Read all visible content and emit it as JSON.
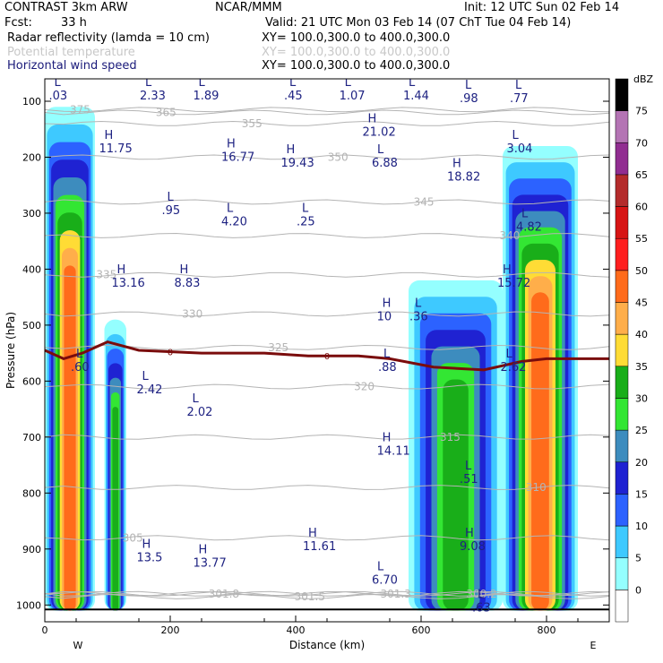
{
  "header": {
    "model": "CONTRAST   3km ARW",
    "org": "NCAR/MMM",
    "init": "Init: 12 UTC Sun 02 Feb 14",
    "fcst_label": "Fcst:",
    "fcst_value": "33 h",
    "valid": "Valid: 21 UTC Mon 03 Feb 14 (07 ChT Tue 04 Feb 14)",
    "field1": "Radar reflectivity (lamda = 10 cm)",
    "field1_xy": "XY= 100.0,300.0 to 400.0,300.0",
    "field2": "Potential temperature",
    "field2_xy": "XY= 100.0,300.0 to 400.0,300.0",
    "field3": "Horizontal wind speed",
    "field3_xy": "XY= 100.0,300.0 to 400.0,300.0"
  },
  "colors": {
    "reflectivity": [
      "#ffffff",
      "#94ffff",
      "#3ec9ff",
      "#2c62ff",
      "#1f22d2",
      "#3d8cbe",
      "#33e633",
      "#19ae19",
      "#ffdc35",
      "#ffae4a",
      "#ff6b1b",
      "#ff1f1f",
      "#d71414",
      "#b42b2b",
      "#912d91",
      "#b474b4"
    ],
    "theta_contour": "#b4b4b4",
    "wind_label": "#1e2282",
    "freezing_line": "#7a0c0c"
  },
  "chart_data": {
    "type": "heatmap",
    "title": "Radar reflectivity (lamda = 10 cm)",
    "xlabel": "Distance (km)",
    "ylabel": "Pressure (hPa)",
    "xlim": [
      0,
      900
    ],
    "ylim": [
      1030,
      60
    ],
    "x_ticks": [
      0,
      200,
      400,
      600,
      800
    ],
    "y_ticks": [
      100,
      200,
      300,
      400,
      500,
      600,
      700,
      800,
      900,
      1000
    ],
    "x_end_labels": [
      "W",
      "E"
    ],
    "colorbar": {
      "unit": "dBZ",
      "levels": [
        0,
        5,
        10,
        15,
        20,
        25,
        30,
        35,
        40,
        45,
        50,
        55,
        60,
        65,
        70,
        75
      ]
    },
    "reflectivity_columns": [
      {
        "x0": 0,
        "x1": 80,
        "top": 110,
        "bottom": 1010,
        "max_dbz": 45
      },
      {
        "x0": 95,
        "x1": 130,
        "top": 490,
        "bottom": 1010,
        "max_dbz": 30
      },
      {
        "x0": 580,
        "x1": 730,
        "top": 420,
        "bottom": 1010,
        "max_dbz": 30
      },
      {
        "x0": 730,
        "x1": 850,
        "top": 180,
        "bottom": 1010,
        "max_dbz": 45
      }
    ],
    "theta_contours": [
      {
        "label": "375",
        "p": 115
      },
      {
        "label": "365",
        "p": 120
      },
      {
        "label": "355",
        "p": 140
      },
      {
        "label": "350",
        "p": 200
      },
      {
        "label": "345",
        "p": 280
      },
      {
        "label": "340",
        "p": 340
      },
      {
        "label": "335",
        "p": 410
      },
      {
        "label": "330",
        "p": 480
      },
      {
        "label": "325",
        "p": 540
      },
      {
        "label": "320",
        "p": 610
      },
      {
        "label": "315",
        "p": 700
      },
      {
        "label": "310",
        "p": 790
      },
      {
        "label": "305",
        "p": 880
      },
      {
        "label": "301.8",
        "p": 980
      },
      {
        "label": "301.5",
        "p": 985
      },
      {
        "label": "301.3",
        "p": 980
      },
      {
        "label": "300.2",
        "p": 980
      }
    ],
    "freezing_level": {
      "label": "0",
      "x": [
        0,
        30,
        60,
        100,
        150,
        250,
        350,
        420,
        500,
        550,
        620,
        700,
        760,
        800,
        850,
        900
      ],
      "p": [
        545,
        560,
        550,
        530,
        545,
        550,
        550,
        555,
        555,
        560,
        575,
        580,
        565,
        560,
        560,
        560
      ]
    },
    "wind_annotations": [
      {
        "type": "L",
        "value": "2.33",
        "x": 160,
        "p": 95
      },
      {
        "type": "L",
        "value": "1.89",
        "x": 245,
        "p": 95
      },
      {
        "type": "L",
        "value": ".45",
        "x": 390,
        "p": 95
      },
      {
        "type": "L",
        "value": "1.07",
        "x": 478,
        "p": 95
      },
      {
        "type": "L",
        "value": "1.44",
        "x": 580,
        "p": 95
      },
      {
        "type": "L",
        "value": ".98",
        "x": 670,
        "p": 100
      },
      {
        "type": "L",
        "value": ".77",
        "x": 750,
        "p": 100
      },
      {
        "type": "H",
        "value": "21.02",
        "x": 515,
        "p": 160
      },
      {
        "type": "H",
        "value": "11.75",
        "x": 95,
        "p": 190
      },
      {
        "type": "H",
        "value": "16.77",
        "x": 290,
        "p": 205
      },
      {
        "type": "H",
        "value": "19.43",
        "x": 385,
        "p": 215
      },
      {
        "type": "L",
        "value": "6.88",
        "x": 530,
        "p": 215
      },
      {
        "type": "H",
        "value": "18.82",
        "x": 650,
        "p": 240
      },
      {
        "type": "L",
        "value": "3.04",
        "x": 745,
        "p": 190
      },
      {
        "type": "L",
        "value": ".95",
        "x": 195,
        "p": 300
      },
      {
        "type": "L",
        "value": "4.20",
        "x": 290,
        "p": 320
      },
      {
        "type": "L",
        "value": ".25",
        "x": 410,
        "p": 320
      },
      {
        "type": "L",
        "value": "4.82",
        "x": 760,
        "p": 330
      },
      {
        "type": "H",
        "value": "13.16",
        "x": 115,
        "p": 430
      },
      {
        "type": "H",
        "value": "8.83",
        "x": 215,
        "p": 430
      },
      {
        "type": "H",
        "value": "15.72",
        "x": 730,
        "p": 430
      },
      {
        "type": "H",
        "value": "10",
        "x": 538,
        "p": 490
      },
      {
        "type": "L",
        "value": ".36",
        "x": 590,
        "p": 490
      },
      {
        "type": "L",
        "value": ".60",
        "x": 50,
        "p": 580
      },
      {
        "type": "L",
        "value": ".88",
        "x": 540,
        "p": 580
      },
      {
        "type": "L",
        "value": "2.62",
        "x": 735,
        "p": 580
      },
      {
        "type": "L",
        "value": "2.42",
        "x": 155,
        "p": 620
      },
      {
        "type": "L",
        "value": "2.02",
        "x": 235,
        "p": 660
      },
      {
        "type": "H",
        "value": "14.11",
        "x": 538,
        "p": 730
      },
      {
        "type": "L",
        "value": ".51",
        "x": 670,
        "p": 780
      },
      {
        "type": "H",
        "value": "9.08",
        "x": 670,
        "p": 900
      },
      {
        "type": "H",
        "value": "11.61",
        "x": 420,
        "p": 900
      },
      {
        "type": "H",
        "value": "13.5",
        "x": 155,
        "p": 920
      },
      {
        "type": "H",
        "value": "13.77",
        "x": 245,
        "p": 930
      },
      {
        "type": "L",
        "value": "6.70",
        "x": 530,
        "p": 960
      },
      {
        "type": "L",
        "value": ".63",
        "x": 690,
        "p": 1010
      },
      {
        "type": "L",
        "value": ".03",
        "x": 15,
        "p": 95
      }
    ]
  }
}
